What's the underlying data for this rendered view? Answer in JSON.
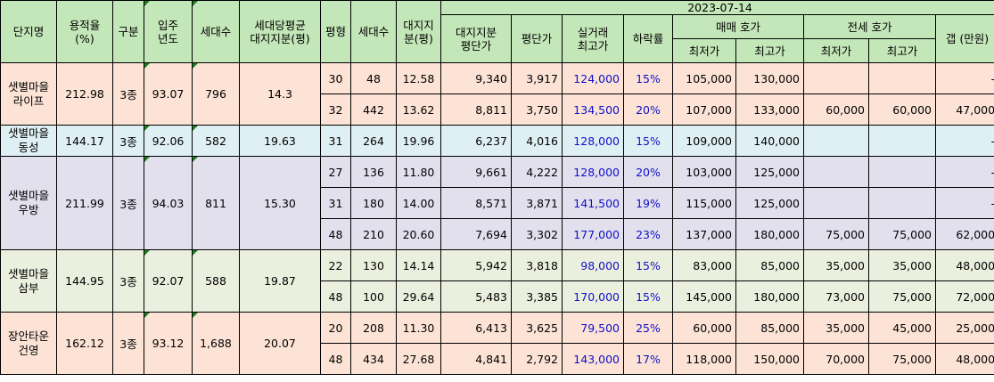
{
  "header": {
    "complex": "단지명",
    "far": "용적율\n(%)",
    "zone": "구분",
    "year": "입주\n년도",
    "households": "세대수",
    "avg_land": "세대당평균\n대지지분(평)",
    "pyeong": "평형",
    "unit_households": "세대수",
    "land_share": "대지지\n분(평)",
    "land_price": "대지지분\n평단가",
    "ppp": "평단가",
    "max_trade": "실거래\n최고가",
    "drop": "하락률",
    "date": "2023-07-14",
    "sale_ask": "매매 호가",
    "jeonse_ask": "전세 호가",
    "min": "최저가",
    "max": "최고가",
    "gap": "갭 (만원)"
  },
  "groups": [
    {
      "name": "샛별마을\n라이프",
      "far": "212.98",
      "zone": "3종",
      "year": "93.07",
      "households": "796",
      "avg_land": "14.3",
      "rows": [
        {
          "pyeong": "30",
          "households": "48",
          "land": "12.58",
          "land_price": "9,340",
          "ppp": "3,917",
          "max_trade": "124,000",
          "drop": "15%",
          "sale_min": "105,000",
          "sale_max": "130,000",
          "jeonse_min": "",
          "jeonse_max": "",
          "gap": "-"
        },
        {
          "pyeong": "32",
          "households": "442",
          "land": "13.62",
          "land_price": "8,811",
          "ppp": "3,750",
          "max_trade": "134,500",
          "drop": "20%",
          "sale_min": "107,000",
          "sale_max": "133,000",
          "jeonse_min": "60,000",
          "jeonse_max": "60,000",
          "gap": "47,000"
        }
      ]
    },
    {
      "name": "샛별마을\n동성",
      "far": "144.17",
      "zone": "3종",
      "year": "92.06",
      "households": "582",
      "avg_land": "19.63",
      "rows": [
        {
          "pyeong": "31",
          "households": "264",
          "land": "19.96",
          "land_price": "6,237",
          "ppp": "4,016",
          "max_trade": "128,000",
          "drop": "15%",
          "sale_min": "109,000",
          "sale_max": "140,000",
          "jeonse_min": "",
          "jeonse_max": "",
          "gap": "-"
        }
      ]
    },
    {
      "name": "샛별마을\n우방",
      "far": "211.99",
      "zone": "3종",
      "year": "94.03",
      "households": "811",
      "avg_land": "15.30",
      "rows": [
        {
          "pyeong": "27",
          "households": "136",
          "land": "11.80",
          "land_price": "9,661",
          "ppp": "4,222",
          "max_trade": "128,000",
          "drop": "20%",
          "sale_min": "103,000",
          "sale_max": "125,000",
          "jeonse_min": "",
          "jeonse_max": "",
          "gap": "-"
        },
        {
          "pyeong": "31",
          "households": "180",
          "land": "14.00",
          "land_price": "8,571",
          "ppp": "3,871",
          "max_trade": "141,500",
          "drop": "19%",
          "sale_min": "115,000",
          "sale_max": "125,000",
          "jeonse_min": "",
          "jeonse_max": "",
          "gap": "-"
        },
        {
          "pyeong": "48",
          "households": "210",
          "land": "20.60",
          "land_price": "7,694",
          "ppp": "3,302",
          "max_trade": "177,000",
          "drop": "23%",
          "sale_min": "137,000",
          "sale_max": "180,000",
          "jeonse_min": "75,000",
          "jeonse_max": "75,000",
          "gap": "62,000"
        }
      ]
    },
    {
      "name": "샛별마을\n삼부",
      "far": "144.95",
      "zone": "3종",
      "year": "92.07",
      "households": "588",
      "avg_land": "19.87",
      "rows": [
        {
          "pyeong": "22",
          "households": "130",
          "land": "14.14",
          "land_price": "5,942",
          "ppp": "3,818",
          "max_trade": "98,000",
          "drop": "15%",
          "sale_min": "83,000",
          "sale_max": "85,000",
          "jeonse_min": "35,000",
          "jeonse_max": "35,000",
          "gap": "48,000"
        },
        {
          "pyeong": "48",
          "households": "100",
          "land": "29.64",
          "land_price": "5,483",
          "ppp": "3,385",
          "max_trade": "170,000",
          "drop": "15%",
          "sale_min": "145,000",
          "sale_max": "180,000",
          "jeonse_min": "73,000",
          "jeonse_max": "75,000",
          "gap": "72,000"
        }
      ]
    },
    {
      "name": "장안타운\n건영",
      "far": "162.12",
      "zone": "3종",
      "year": "93.12",
      "households": "1,688",
      "avg_land": "20.07",
      "rows": [
        {
          "pyeong": "20",
          "households": "208",
          "land": "11.30",
          "land_price": "6,413",
          "ppp": "3,625",
          "max_trade": "79,500",
          "drop": "25%",
          "sale_min": "60,000",
          "sale_max": "85,000",
          "jeonse_min": "35,000",
          "jeonse_max": "45,000",
          "gap": "25,000"
        },
        {
          "pyeong": "48",
          "households": "434",
          "land": "27.68",
          "land_price": "4,841",
          "ppp": "2,792",
          "max_trade": "143,000",
          "drop": "17%",
          "sale_min": "118,000",
          "sale_max": "150,000",
          "jeonse_min": "70,000",
          "jeonse_max": "75,000",
          "gap": "48,000"
        }
      ]
    }
  ]
}
